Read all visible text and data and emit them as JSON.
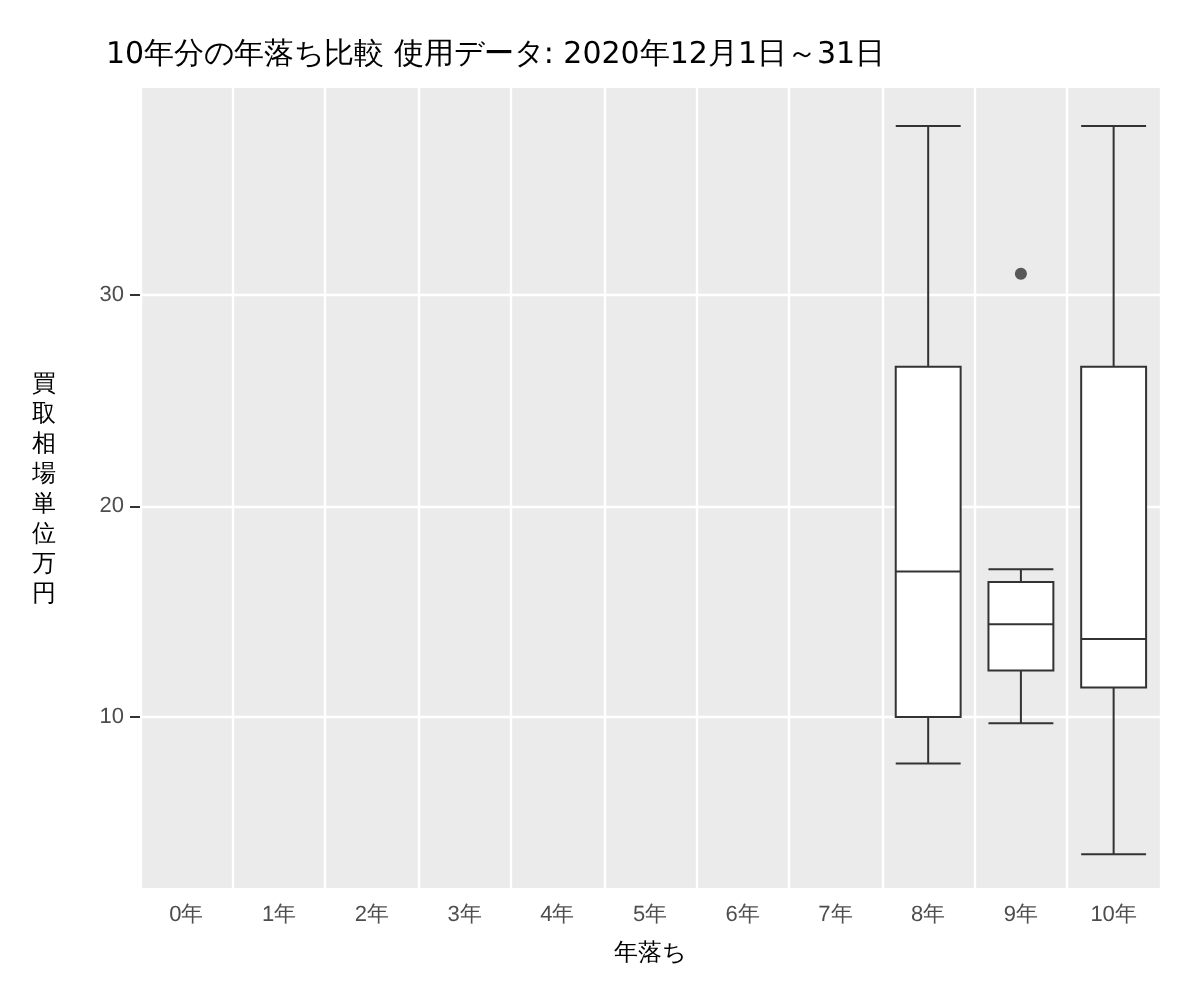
{
  "chart_data": {
    "type": "box",
    "title": "10年分の年落ち比較 使用データ: 2020年12月1日～31日",
    "xlabel": "年落ち",
    "ylabel": "買取相場単位万円",
    "categories": [
      "0年",
      "1年",
      "2年",
      "3年",
      "4年",
      "5年",
      "6年",
      "7年",
      "8年",
      "9年",
      "10年"
    ],
    "boxes": [
      null,
      null,
      null,
      null,
      null,
      null,
      null,
      null,
      {
        "low": 7.8,
        "q1": 10.0,
        "median": 16.9,
        "q3": 26.6,
        "high": 38.0
      },
      {
        "low": 9.7,
        "q1": 12.2,
        "median": 14.4,
        "q3": 16.4,
        "high": 17.0,
        "outliers": [
          31.0
        ]
      },
      {
        "low": 3.5,
        "q1": 11.4,
        "median": 13.7,
        "q3": 26.6,
        "high": 38.0
      }
    ],
    "color": "#ffffff",
    "ylim": [
      1.9,
      39.8
    ],
    "yticks": [
      10,
      20,
      30
    ],
    "grid": true
  }
}
